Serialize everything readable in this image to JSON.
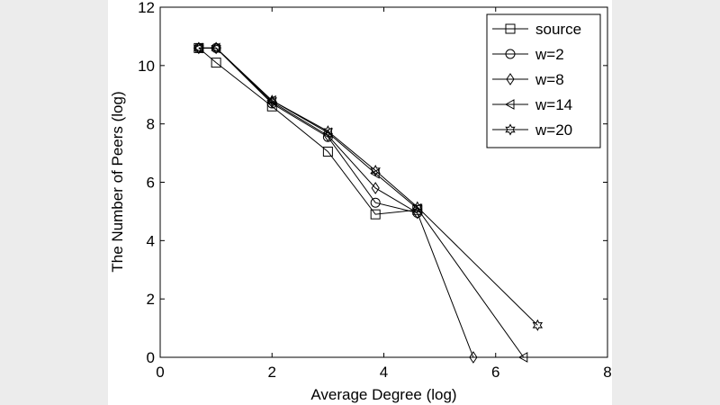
{
  "chart_data": {
    "type": "line",
    "xlabel": "Average Degree (log)",
    "ylabel": "The Number of Peers (log)",
    "xlim": [
      0,
      8
    ],
    "ylim": [
      0,
      12
    ],
    "xticks": [
      0,
      2,
      4,
      6,
      8
    ],
    "yticks": [
      0,
      2,
      4,
      6,
      8,
      10,
      12
    ],
    "grid": false,
    "legend_position": "top-right",
    "series": [
      {
        "name": "source",
        "marker": "square",
        "points": [
          [
            0.69,
            10.6
          ],
          [
            1.0,
            10.1
          ],
          [
            2.0,
            8.6
          ],
          [
            3.0,
            7.05
          ],
          [
            3.85,
            4.9
          ],
          [
            4.6,
            5.05
          ]
        ]
      },
      {
        "name": "w=2",
        "marker": "circle",
        "points": [
          [
            0.69,
            10.6
          ],
          [
            1.0,
            10.6
          ],
          [
            2.0,
            8.7
          ],
          [
            3.0,
            7.55
          ],
          [
            3.85,
            5.3
          ],
          [
            4.6,
            4.95
          ]
        ]
      },
      {
        "name": "w=8",
        "marker": "diamond",
        "points": [
          [
            0.69,
            10.6
          ],
          [
            1.0,
            10.6
          ],
          [
            2.0,
            8.75
          ],
          [
            3.0,
            7.6
          ],
          [
            3.85,
            5.8
          ],
          [
            4.6,
            4.95
          ],
          [
            5.6,
            0.0
          ]
        ]
      },
      {
        "name": "w=14",
        "marker": "triangle-left",
        "points": [
          [
            0.69,
            10.6
          ],
          [
            1.0,
            10.6
          ],
          [
            2.0,
            8.8
          ],
          [
            3.0,
            7.7
          ],
          [
            3.85,
            6.3
          ],
          [
            4.6,
            5.1
          ],
          [
            6.5,
            0.0
          ]
        ]
      },
      {
        "name": "w=20",
        "marker": "hexagram",
        "points": [
          [
            0.69,
            10.6
          ],
          [
            1.0,
            10.6
          ],
          [
            2.0,
            8.8
          ],
          [
            3.0,
            7.75
          ],
          [
            3.85,
            6.4
          ],
          [
            4.6,
            5.15
          ],
          [
            6.75,
            1.1
          ]
        ]
      }
    ]
  }
}
